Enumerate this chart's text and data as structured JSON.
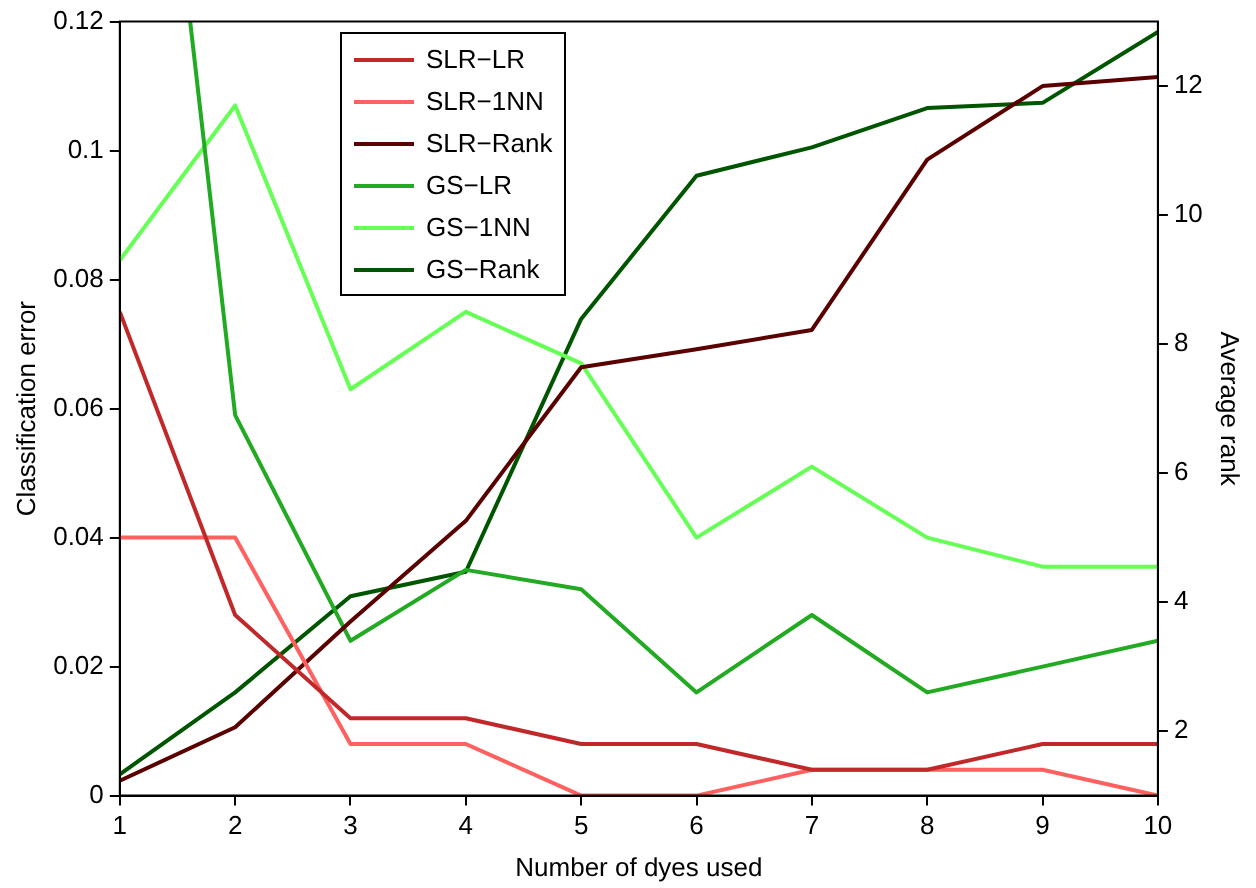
{
  "chart_data": {
    "type": "line",
    "xlabel": "Number of dyes used",
    "ylabel": "Classification error",
    "y2label": "Average rank",
    "x": [
      1,
      2,
      3,
      4,
      5,
      6,
      7,
      8,
      9,
      10
    ],
    "xlim": [
      1,
      10
    ],
    "xticks": [
      1,
      2,
      3,
      4,
      5,
      6,
      7,
      8,
      9,
      10
    ],
    "ylim": [
      0,
      0.12
    ],
    "yticks": [
      0,
      0.02,
      0.04,
      0.06,
      0.08,
      0.1,
      0.12
    ],
    "y2lim": [
      1,
      13
    ],
    "y2ticks": [
      2,
      4,
      6,
      8,
      10,
      12
    ],
    "grid": false,
    "legend": "top left",
    "marker": "none",
    "line_style": "solid",
    "series": [
      {
        "name": "SLR−LR",
        "color": "#c0282a",
        "values": [
          0.075,
          0.028,
          0.012,
          0.012,
          0.008,
          0.008,
          0.004,
          0.004,
          0.008,
          0.008
        ]
      },
      {
        "name": "SLR−1NN",
        "color": "#ff6060",
        "values": [
          0.04,
          0.04,
          0.008,
          0.008,
          0,
          0,
          0.004,
          0.004,
          0.004,
          0
        ]
      },
      {
        "name": "SLR−Rank",
        "color": "#5a0000",
        "axis": "y2",
        "values": [
          1.23,
          2.06,
          3.7,
          5.26,
          7.64,
          7.92,
          8.22,
          10.86,
          12,
          12.14
        ]
      },
      {
        "name": "GS−LR",
        "color": "#22aa22",
        "x": [
          1.61,
          2,
          3,
          4,
          5,
          6,
          7,
          8,
          9,
          10
        ],
        "values": [
          0.12,
          0.059,
          0.024,
          0.035,
          0.032,
          0.016,
          0.028,
          0.016,
          0.02,
          0.024
        ]
      },
      {
        "name": "GS−1NN",
        "color": "#66ff55",
        "values": [
          0.083,
          0.107,
          0.063,
          0.075,
          0.067,
          0.04,
          0.051,
          0.04,
          0.0355,
          0.0355
        ]
      },
      {
        "name": "GS−Rank",
        "color": "#005500",
        "axis": "y2",
        "values": [
          1.33,
          2.6,
          4.09,
          4.47,
          8.39,
          10.61,
          11.05,
          11.66,
          11.74,
          12.84
        ]
      }
    ]
  }
}
